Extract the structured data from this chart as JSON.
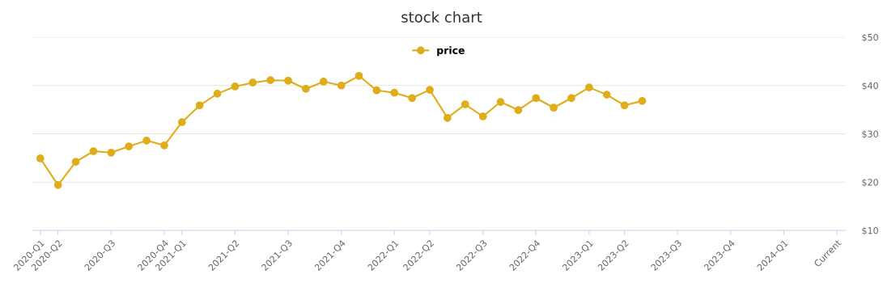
{
  "chart_data": {
    "type": "line",
    "title": "stock chart",
    "categories": [
      "2020-Q1",
      "2020-Q2",
      null,
      null,
      "2020-Q3",
      null,
      null,
      "2020-Q4",
      "2021-Q1",
      null,
      null,
      "2021-Q2",
      null,
      null,
      "2021-Q3",
      null,
      null,
      "2021-Q4",
      null,
      null,
      "2022-Q1",
      null,
      "2022-Q2",
      null,
      null,
      "2022-Q3",
      null,
      null,
      "2022-Q4",
      null,
      null,
      "2023-Q1",
      null,
      "2023-Q2",
      null,
      null,
      "2023-Q3",
      null,
      null,
      "2023-Q4",
      null,
      null,
      "2024-Q1",
      null,
      null,
      "Current"
    ],
    "series": [
      {
        "name": "price",
        "color": "#e0ac1a",
        "values": [
          24.9,
          19.4,
          24.2,
          26.4,
          26.1,
          27.4,
          28.6,
          27.6,
          32.4,
          35.9,
          38.3,
          39.8,
          40.6,
          41.1,
          41.0,
          39.3,
          40.8,
          40.0,
          42.0,
          39.0,
          38.5,
          37.4,
          39.1,
          33.3,
          36.1,
          33.6,
          36.6,
          34.9,
          37.4,
          35.4,
          37.4,
          39.6,
          38.1,
          35.9,
          36.8,
          null,
          null,
          null,
          null,
          null,
          null,
          null,
          null,
          null,
          null,
          null
        ]
      }
    ],
    "ylim": [
      10,
      50
    ],
    "yticks": [
      {
        "value": 10,
        "label": "$10"
      },
      {
        "value": 20,
        "label": "$20"
      },
      {
        "value": 30,
        "label": "$30"
      },
      {
        "value": 40,
        "label": "$40"
      },
      {
        "value": 50,
        "label": "$50"
      }
    ],
    "grid": "y",
    "legend": "top",
    "marker": "circle",
    "line_style": "solid"
  }
}
